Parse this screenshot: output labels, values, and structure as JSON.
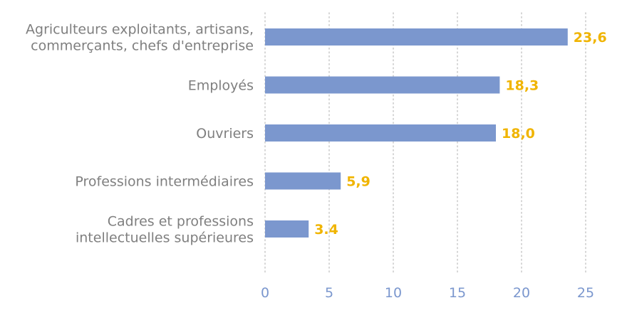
{
  "chart_data": {
    "type": "bar",
    "orientation": "horizontal",
    "title": "",
    "xlabel": "",
    "ylabel": "",
    "categories": [
      [
        "Agriculteurs exploitants, artisans,",
        "commerçants, chefs d'entreprise"
      ],
      [
        "Employés"
      ],
      [
        "Ouvriers"
      ],
      [
        "Professions intermédiaires"
      ],
      [
        "Cadres et professions",
        "intellectuelles supérieures"
      ]
    ],
    "values": [
      23.6,
      18.3,
      18.0,
      5.9,
      3.4
    ],
    "value_labels": [
      "23,6",
      "18,3",
      "18,0",
      "5,9",
      "3.4"
    ],
    "x_ticks": [
      0,
      5,
      10,
      15,
      20,
      25
    ],
    "xlim": [
      0,
      25
    ],
    "grid": "vertical-dotted",
    "colors": {
      "bar": "#7b97ce",
      "value_label": "#f0b400",
      "tick_label": "#7b97ce",
      "category_label": "#7f7f7f",
      "grid": "#c8c8c8"
    }
  }
}
